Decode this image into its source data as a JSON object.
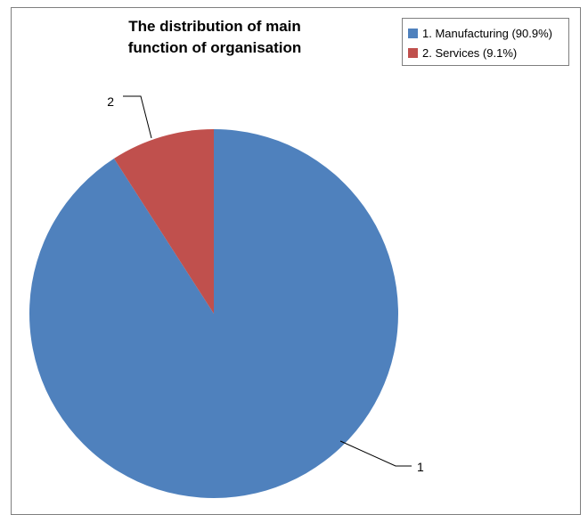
{
  "chart_data": {
    "type": "pie",
    "title_lines": [
      "The distribution of main",
      "function of organisation"
    ],
    "slices": [
      {
        "name": "1. Manufacturing (90.9%)",
        "label": "1",
        "value": 90.9,
        "color": "#4f81bd"
      },
      {
        "name": "2. Services (9.1%)",
        "label": "2",
        "value": 9.1,
        "color": "#c0504d"
      }
    ],
    "start": "top",
    "direction": "clockwise",
    "legend_position": "top-right"
  }
}
